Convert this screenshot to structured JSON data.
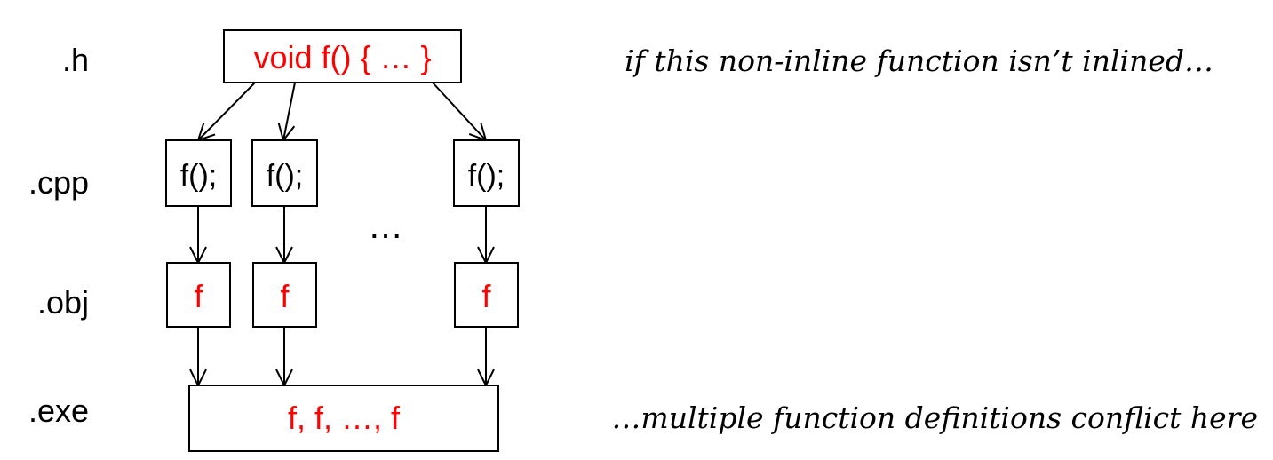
{
  "colors": {
    "stroke": "#000000",
    "code_red": "#ff0000",
    "text": "#000000",
    "background": "#ffffff"
  },
  "layers": {
    "h": ".h",
    "cpp": ".cpp",
    "obj": ".obj",
    "exe": ".exe"
  },
  "header_box": {
    "text": "void f() { … }"
  },
  "cpp_boxes": [
    "f();",
    "f();",
    "f();"
  ],
  "obj_boxes": [
    "f",
    "f",
    "f"
  ],
  "ellipsis": "…",
  "exe_box": {
    "text": "f, f, …, f"
  },
  "notes": {
    "top": "if this non-inline function isn’t inlined…",
    "bottom": "…multiple function definitions conflict here"
  }
}
